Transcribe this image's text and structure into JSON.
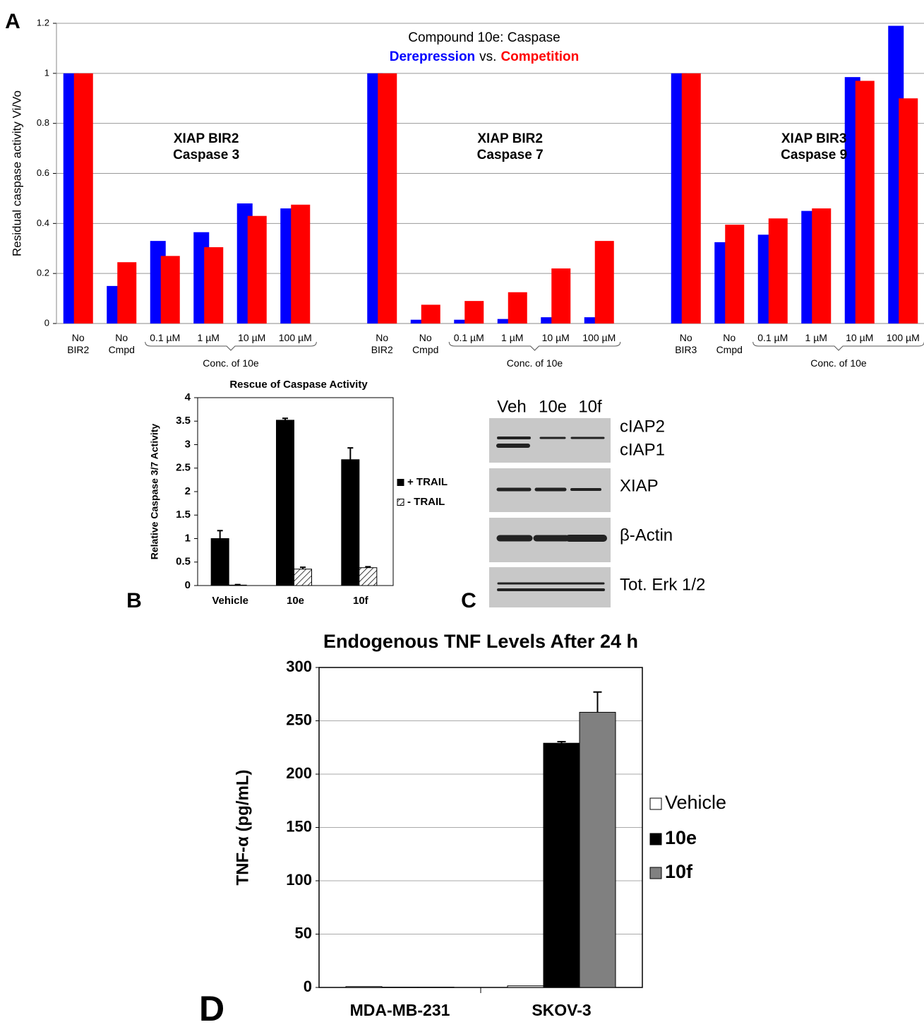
{
  "chart_data": [
    {
      "type": "bar",
      "panel": "A",
      "title": "Compound 10e: Caspase",
      "legend_joiner": "vs.",
      "y_label": "Residual caspase activity Vi/Vo",
      "categories": [
        "No\nBIR2",
        "No\nCmpd",
        "0.1 µM",
        "1 µM",
        "10 µM",
        "100 µM",
        "No\nBIR2",
        "No\nCmpd",
        "0.1 µM",
        "1 µM",
        "10 µM",
        "100 µM",
        "No\nBIR3",
        "No\nCmpd",
        "0.1 µM",
        "1 µM",
        "10 µM",
        "100 µM"
      ],
      "groups": [
        {
          "label": "XIAP BIR2\nCaspase 3",
          "bracket": "Conc. of 10e"
        },
        {
          "label": "XIAP BIR2\nCaspase 7",
          "bracket": "Conc. of 10e"
        },
        {
          "label": "XIAP BIR3\nCaspase 9",
          "bracket": "Conc. of 10e"
        }
      ],
      "series": [
        {
          "name": "Derepression",
          "color": "#0000ff",
          "values": [
            1,
            0.15,
            0.33,
            0.365,
            0.48,
            0.46,
            1,
            0.015,
            0.015,
            0.018,
            0.025,
            0.025,
            1,
            0.325,
            0.355,
            0.45,
            0.985,
            1.19
          ]
        },
        {
          "name": "Competition",
          "color": "#ff0000",
          "values": [
            1,
            0.245,
            0.27,
            0.305,
            0.43,
            0.475,
            1,
            0.075,
            0.09,
            0.125,
            0.22,
            0.33,
            1,
            0.395,
            0.42,
            0.46,
            0.97,
            0.9
          ]
        }
      ],
      "ylim": [
        0,
        1.2
      ],
      "yticks": [
        0,
        0.2,
        0.4,
        0.6,
        0.8,
        1,
        1.2
      ],
      "grid": true
    },
    {
      "type": "bar",
      "panel": "B",
      "title": "Rescue of Caspase Activity",
      "y_label": "Relative Caspase 3/7 Activity",
      "categories": [
        "Vehicle",
        "10e",
        "10f"
      ],
      "series": [
        {
          "name": "+ TRAIL",
          "color": "#000000",
          "values": [
            1,
            3.52,
            2.68
          ],
          "errors": [
            0.17,
            0.04,
            0.25
          ]
        },
        {
          "name": "- TRAIL",
          "color": "#000000",
          "hatch": true,
          "values": [
            0.01,
            0.35,
            0.38
          ],
          "errors": [
            0.01,
            0.04,
            0.02
          ]
        }
      ],
      "ylim": [
        0,
        4
      ],
      "yticks": [
        0,
        0.5,
        1,
        1.5,
        2,
        2.5,
        3,
        3.5,
        4
      ],
      "grid": false,
      "legend": "right"
    },
    {
      "type": "bar",
      "panel": "D",
      "title": "Endogenous TNF Levels After 24 h",
      "y_label": "TNF-α (pg/mL)",
      "categories": [
        "MDA-MB-231",
        "SKOV-3"
      ],
      "series": [
        {
          "name": "Vehicle",
          "color": "#ffffff",
          "values": [
            0.8,
            1.5
          ],
          "errors": [
            null,
            null
          ]
        },
        {
          "name": "10e",
          "color": "#000000",
          "values": [
            0.3,
            229
          ],
          "errors": [
            null,
            1.5
          ]
        },
        {
          "name": "10f",
          "color": "#808080",
          "values": [
            0.3,
            258
          ],
          "errors": [
            null,
            19
          ]
        }
      ],
      "ylim": [
        0,
        300
      ],
      "yticks": [
        0,
        50,
        100,
        150,
        200,
        250,
        300
      ],
      "grid": true,
      "legend": "right"
    }
  ],
  "blot": {
    "panel": "C",
    "lanes": [
      "Veh",
      "10e",
      "10f"
    ],
    "bands": [
      "cIAP2",
      "cIAP1",
      "XIAP",
      "β-Actin",
      "Tot. Erk 1/2"
    ]
  }
}
